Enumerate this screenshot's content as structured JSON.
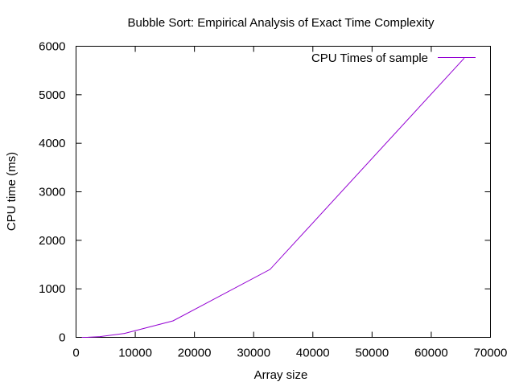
{
  "chart_data": {
    "type": "line",
    "title": "Bubble Sort: Empirical Analysis of Exact Time Complexity",
    "xlabel": "Array size",
    "ylabel": "CPU time (ms)",
    "xlim": [
      0,
      70000
    ],
    "ylim": [
      0,
      6000
    ],
    "x_ticks": [
      0,
      10000,
      20000,
      30000,
      40000,
      50000,
      60000,
      70000
    ],
    "y_ticks": [
      0,
      1000,
      2000,
      3000,
      4000,
      5000,
      6000
    ],
    "x_tick_labels": [
      "0",
      "10000",
      "20000",
      "30000",
      "40000",
      "50000",
      "60000",
      "70000"
    ],
    "y_tick_labels": [
      "0",
      "1000",
      "2000",
      "3000",
      "4000",
      "5000",
      "6000"
    ],
    "grid": false,
    "legend_position": "top-right",
    "series": [
      {
        "name": "CPU Times of sample",
        "color": "#9400d3",
        "x": [
          1024,
          2048,
          4096,
          8192,
          16384,
          32768,
          65536
        ],
        "y": [
          1,
          3,
          15,
          80,
          340,
          1400,
          5750
        ]
      }
    ]
  }
}
